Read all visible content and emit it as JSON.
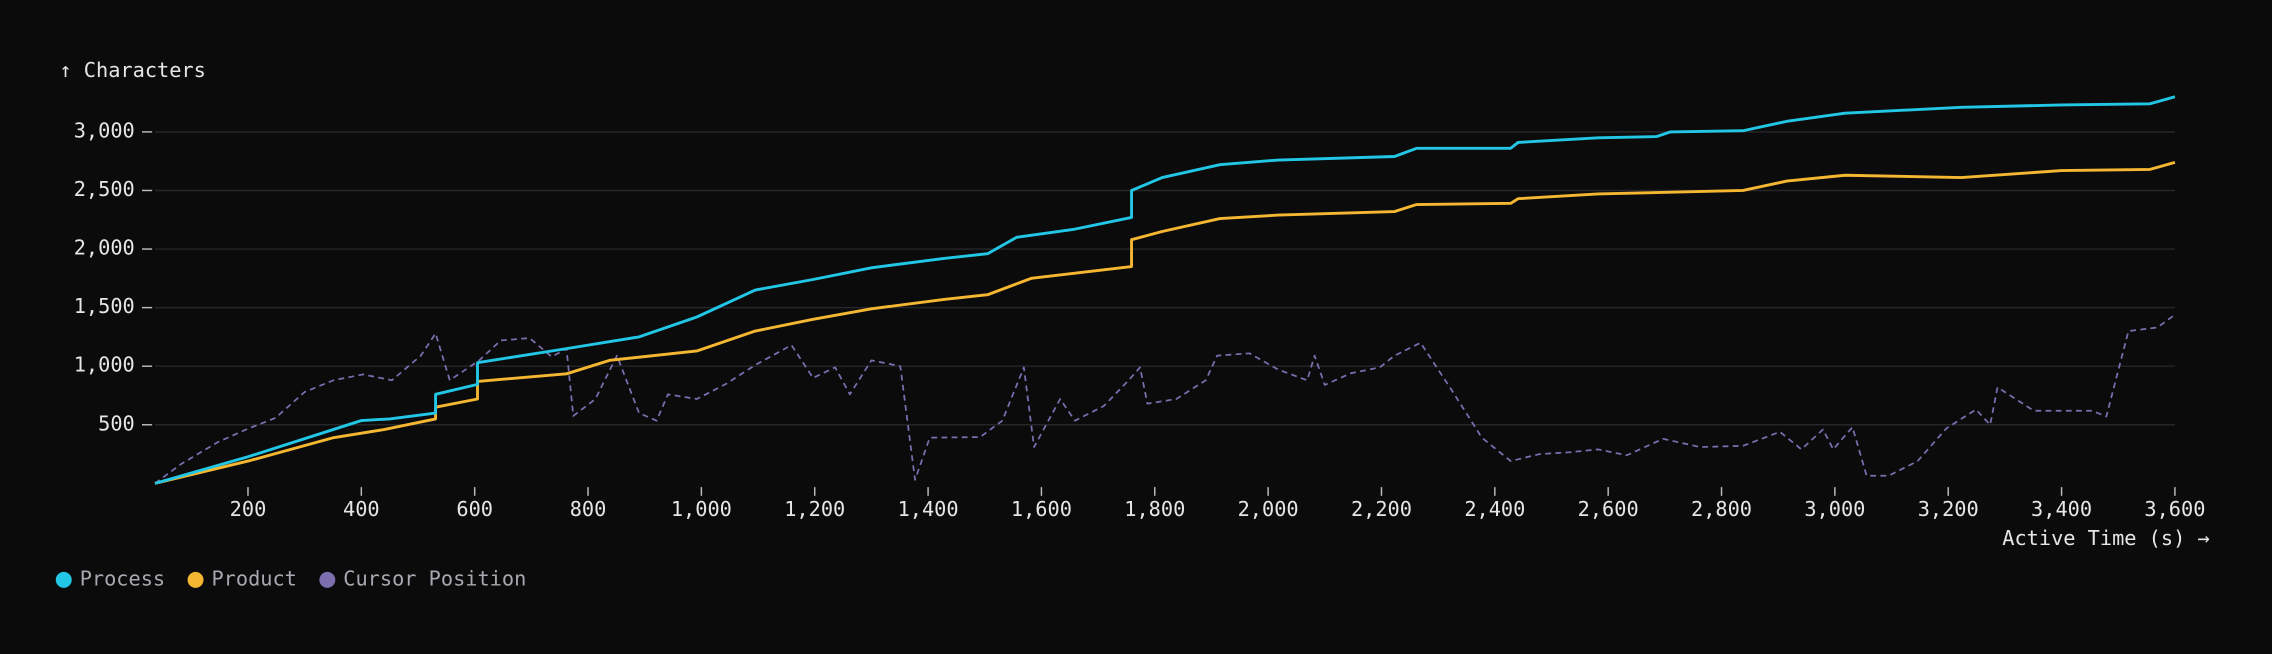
{
  "chart_data": {
    "type": "line",
    "y_label": "↑ Characters",
    "x_label": "Active Time (s) →",
    "xlim": [
      36,
      3600
    ],
    "ylim": [
      0,
      3300
    ],
    "xticks": [
      200,
      400,
      600,
      800,
      {
        "value": 1000,
        "label": "1,000"
      },
      {
        "value": 1200,
        "label": "1,200"
      },
      {
        "value": 1400,
        "label": "1,400"
      },
      {
        "value": 1600,
        "label": "1,600"
      },
      {
        "value": 1800,
        "label": "1,800"
      },
      {
        "value": 2000,
        "label": "2,000"
      },
      {
        "value": 2200,
        "label": "2,200"
      },
      {
        "value": 2400,
        "label": "2,400"
      },
      {
        "value": 2600,
        "label": "2,600"
      },
      {
        "value": 2800,
        "label": "2,800"
      },
      {
        "value": 3000,
        "label": "3,000"
      },
      {
        "value": 3200,
        "label": "3,200"
      },
      {
        "value": 3400,
        "label": "3,400"
      },
      {
        "value": 3600,
        "label": "3,600"
      }
    ],
    "yticks": [
      500,
      {
        "value": 1000,
        "label": "1,000"
      },
      {
        "value": 1500,
        "label": "1,500"
      },
      {
        "value": 2000,
        "label": "2,000"
      },
      {
        "value": 2500,
        "label": "2,500"
      },
      {
        "value": 3000,
        "label": "3,000"
      }
    ],
    "grid": true,
    "legend": "bottom-left",
    "series": [
      {
        "name": "Process",
        "color": "#22c7e6",
        "line_style": "solid",
        "x": [
          36,
          200,
          400,
          450,
          531,
          531,
          605,
          605,
          762,
          890,
          992,
          1095,
          1197,
          1300,
          1428,
          1505,
          1556,
          1659,
          1759,
          1759,
          1813,
          1915,
          2018,
          2223,
          2262,
          2428,
          2441,
          2582,
          2685,
          2710,
          2838,
          2915,
          3018,
          3223,
          3400,
          3556,
          3600
        ],
        "values": [
          0,
          227,
          536,
          550,
          600,
          760,
          845,
          1030,
          1150,
          1250,
          1420,
          1650,
          1740,
          1840,
          1920,
          1960,
          2100,
          2170,
          2270,
          2500,
          2610,
          2720,
          2760,
          2790,
          2860,
          2860,
          2910,
          2950,
          2960,
          3000,
          3010,
          3090,
          3160,
          3210,
          3230,
          3240,
          3300
        ]
      },
      {
        "name": "Product",
        "color": "#f5b731",
        "line_style": "solid",
        "x": [
          36,
          200,
          351,
          441,
          531,
          531,
          605,
          605,
          762,
          838,
          992,
          1095,
          1197,
          1300,
          1428,
          1505,
          1582,
          1759,
          1759,
          1813,
          1915,
          2018,
          2223,
          2262,
          2428,
          2441,
          2582,
          2838,
          2915,
          3018,
          3223,
          3400,
          3556,
          3600
        ],
        "values": [
          0,
          190,
          390,
          460,
          550,
          650,
          720,
          870,
          935,
          1050,
          1130,
          1300,
          1400,
          1490,
          1570,
          1610,
          1750,
          1850,
          2080,
          2150,
          2260,
          2290,
          2320,
          2380,
          2390,
          2430,
          2470,
          2500,
          2580,
          2630,
          2610,
          2670,
          2680,
          2740
        ]
      },
      {
        "name": "Cursor Position",
        "color": "#7b6fb0",
        "line_style": "dashed",
        "x": [
          36,
          82,
          146,
          197,
          249,
          300,
          351,
          403,
          454,
          505,
          531,
          556,
          608,
          646,
          697,
          736,
          762,
          774,
          813,
          851,
          890,
          921,
          941,
          992,
          1044,
          1095,
          1159,
          1197,
          1236,
          1262,
          1300,
          1351,
          1377,
          1403,
          1492,
          1531,
          1569,
          1587,
          1633,
          1659,
          1710,
          1754,
          1774,
          1787,
          1838,
          1890,
          1910,
          1967,
          2018,
          2069,
          2082,
          2100,
          2146,
          2197,
          2223,
          2269,
          2326,
          2377,
          2428,
          2479,
          2531,
          2582,
          2633,
          2697,
          2762,
          2838,
          2903,
          2941,
          2979,
          2997,
          3031,
          3056,
          3095,
          3146,
          3197,
          3249,
          3274,
          3287,
          3351,
          3454,
          3479,
          3518,
          3569,
          3600
        ],
        "values": [
          0,
          165,
          350,
          460,
          560,
          780,
          880,
          930,
          880,
          1090,
          1280,
          880,
          1050,
          1220,
          1240,
          1080,
          1150,
          575,
          720,
          1090,
          600,
          535,
          760,
          720,
          850,
          1010,
          1180,
          900,
          990,
          760,
          1050,
          1000,
          30,
          390,
          395,
          535,
          990,
          310,
          720,
          535,
          660,
          880,
          990,
          680,
          720,
          880,
          1090,
          1110,
          970,
          880,
          1090,
          840,
          940,
          990,
          1090,
          1200,
          780,
          390,
          190,
          250,
          265,
          290,
          240,
          380,
          310,
          320,
          440,
          290,
          460,
          290,
          480,
          65,
          65,
          190,
          470,
          630,
          500,
          820,
          620,
          620,
          570,
          1300,
          1330,
          1440
        ]
      }
    ]
  }
}
